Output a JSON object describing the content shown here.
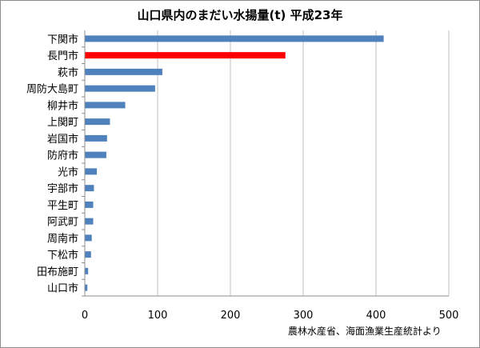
{
  "chart_data": {
    "type": "bar",
    "orientation": "horizontal",
    "title": "山口県内のまだい水揚量(t) 平成23年",
    "categories": [
      "下関市",
      "長門市",
      "萩市",
      "周防大島町",
      "柳井市",
      "上関町",
      "岩国市",
      "防府市",
      "光市",
      "宇部市",
      "平生町",
      "阿武町",
      "周南市",
      "下松市",
      "田布施町",
      "山口市"
    ],
    "values": [
      410,
      275,
      106,
      96,
      55,
      34,
      30,
      29,
      16,
      12,
      11,
      11,
      9,
      8,
      4,
      3
    ],
    "bar_colors": [
      "#4f81bd",
      "#ff0000",
      "#4f81bd",
      "#4f81bd",
      "#4f81bd",
      "#4f81bd",
      "#4f81bd",
      "#4f81bd",
      "#4f81bd",
      "#4f81bd",
      "#4f81bd",
      "#4f81bd",
      "#4f81bd",
      "#4f81bd",
      "#4f81bd",
      "#4f81bd"
    ],
    "xlim": [
      0,
      500
    ],
    "xticks": [
      0,
      100,
      200,
      300,
      400,
      500
    ],
    "xlabel": "",
    "ylabel": "",
    "grid": "vertical",
    "legend": "none",
    "annotation": "農林水産省、海面漁業生産統計より"
  }
}
